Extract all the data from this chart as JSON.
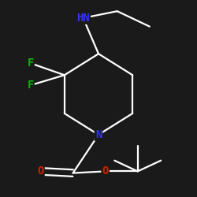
{
  "background_color": "#1a1a1a",
  "bond_color": "#ffffff",
  "atom_colors": {
    "N": "#3333ff",
    "HN": "#3333ff",
    "F": "#00bb00",
    "O": "#cc2200",
    "C": "#ffffff"
  },
  "bond_width": 1.6,
  "font_size_main": 10,
  "font_size_small": 8
}
